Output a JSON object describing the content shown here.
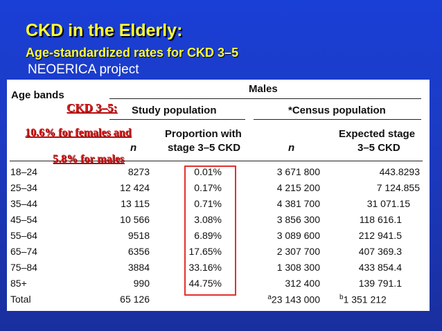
{
  "slide": {
    "title": "CKD in the Elderly:",
    "subtitle": "Age-standardized rates for CKD 3–5",
    "project": "NEOERICA project"
  },
  "overlay": {
    "ckd_label": "CKD 3–5:",
    "females_text": "10.6% for females and",
    "males_text": "5.8% for males"
  },
  "table": {
    "age_bands_header": "Age bands",
    "males_header": "Males",
    "study_population_header": "Study population",
    "census_population_header": "*Census population",
    "col_n_study": "n",
    "col_proportion_line1": "Proportion with",
    "col_proportion_line2": "stage 3–5 CKD",
    "col_n_census": "n",
    "col_expected_line1": "Expected stage",
    "col_expected_line2": "3–5 CKD",
    "rows": [
      {
        "age": "18–24",
        "n": "8273",
        "proportion": "0.01%",
        "census_n": "3 671 800",
        "expected": "443.8293"
      },
      {
        "age": "25–34",
        "n": "12 424",
        "proportion": "0.17%",
        "census_n": "4 215 200",
        "expected": "7 124.855"
      },
      {
        "age": "35–44",
        "n": "13 115",
        "proportion": "0.71%",
        "census_n": "4 381 700",
        "expected": "31 071.15"
      },
      {
        "age": "45–54",
        "n": "10 566",
        "proportion": "3.08%",
        "census_n": "3 856 300",
        "expected": "118 616.1"
      },
      {
        "age": "55–64",
        "n": "9518",
        "proportion": "6.89%",
        "census_n": "3 089 600",
        "expected": "212 941.5"
      },
      {
        "age": "65–74",
        "n": "6356",
        "proportion": "17.65%",
        "census_n": "2 307 700",
        "expected": "407 369.3"
      },
      {
        "age": "75–84",
        "n": "3884",
        "proportion": "33.16%",
        "census_n": "1 308 300",
        "expected": "433 854.4"
      },
      {
        "age": "85+",
        "n": "990",
        "proportion": "44.75%",
        "census_n": "312 400",
        "expected": "139 791.1"
      }
    ],
    "total": {
      "label": "Total",
      "n": "65 126",
      "census_sup": "a",
      "census_n": "23 143 000",
      "expected_sup": "b",
      "expected": "1 351 212"
    }
  }
}
